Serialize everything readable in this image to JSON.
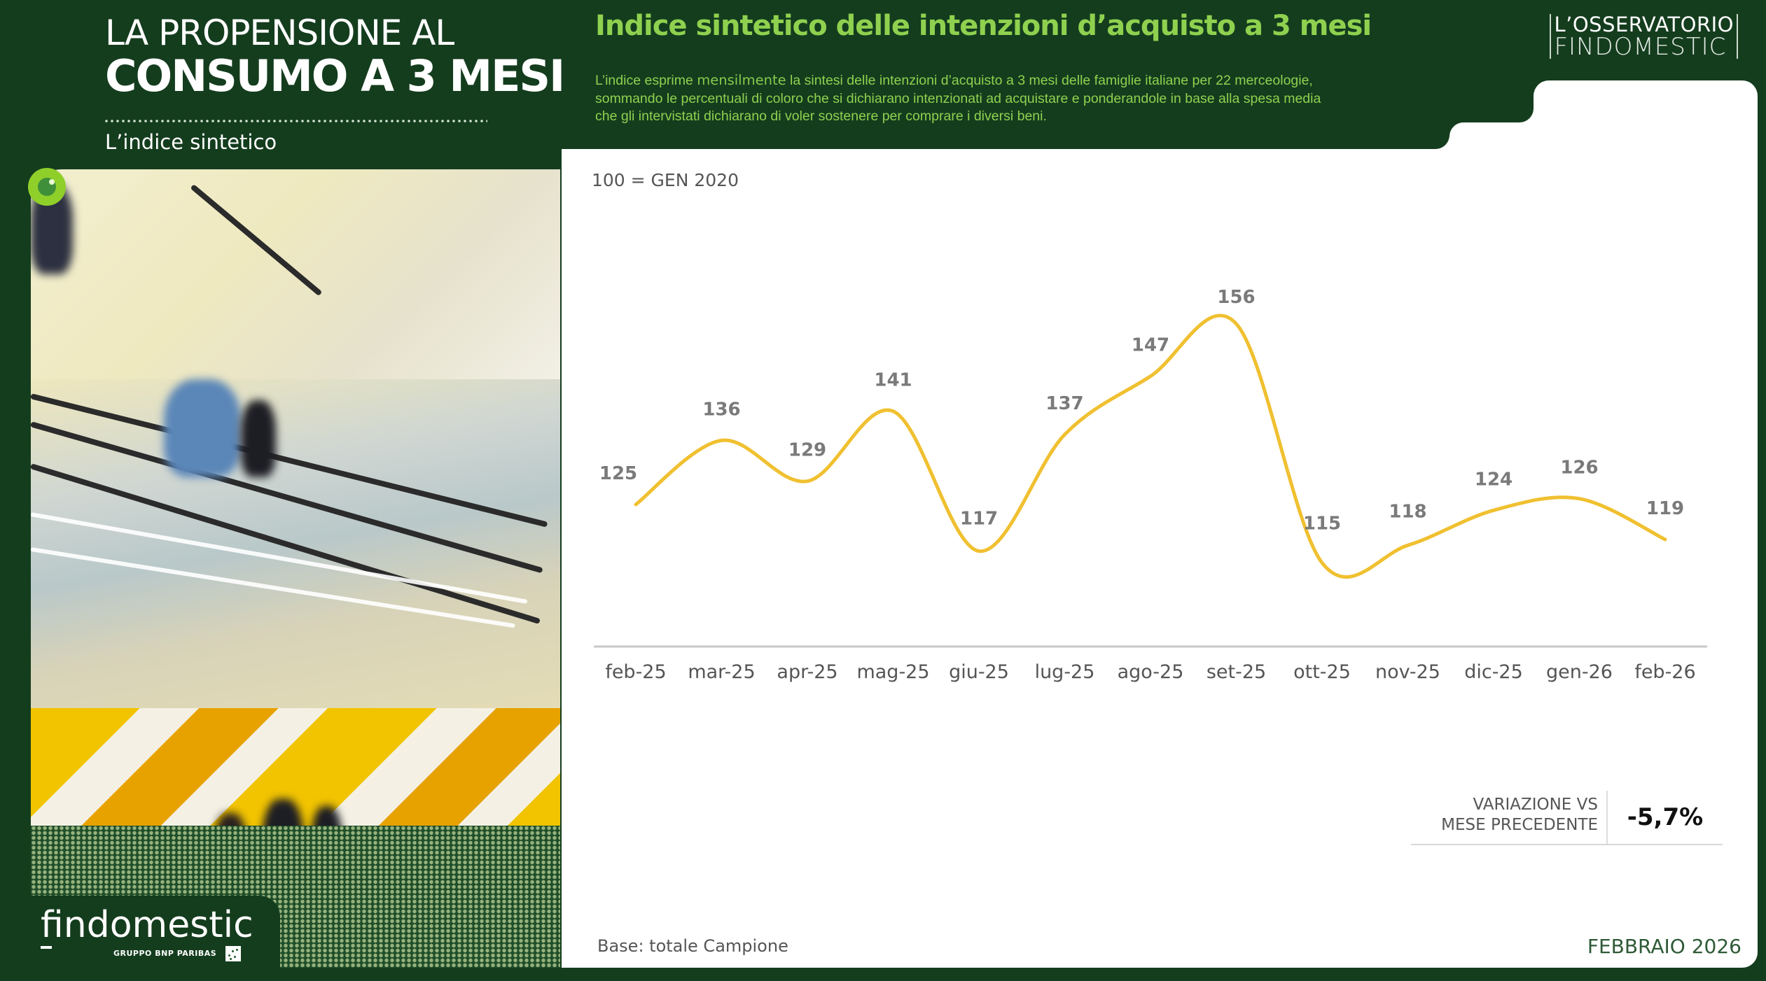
{
  "left": {
    "title_line1": "LA PROPENSIONE AL",
    "title_line2": "CONSUMO A 3 MESI",
    "subtitle": "L’indice sintetico",
    "brand": "findomestic",
    "brand_sub": "GRUPPO BNP PARIBAS"
  },
  "header": {
    "title": "Indice sintetico delle intenzioni d’acquisto a 3 mesi",
    "desc_line1_a": "L’indice esprime ",
    "desc_line1_hl": "mensilmente",
    "desc_line1_b": " la sintesi delle intenzioni d’acquisto a 3 mesi delle famiglie italiane per 22 merceologie,",
    "desc_line2": "sommando le percentuali di coloro che si dichiarano intenzionati ad acquistare e ponderandole in base alla spesa media",
    "desc_line3": "che gli intervistati dichiarano di voler sostenere per comprare i diversi beni.",
    "logo_line1": "L’OSSERVATORIO",
    "logo_line2": "FINDOMESTIC"
  },
  "panel": {
    "base_note": "100 = GEN 2020",
    "source": "Base: totale Campione",
    "period": "FEBBRAIO 2026",
    "variation_label_1": "VARIAZIONE VS",
    "variation_label_2": "MESE PRECEDENTE",
    "variation_value": "-5,7%"
  },
  "colors": {
    "background": "#143d1e",
    "accent_green": "#8fd14f",
    "line": "#f0c030",
    "label_gray": "#7a7a7a",
    "axis": "#c8c8c8"
  },
  "chart_data": {
    "type": "line",
    "title": "Indice sintetico delle intenzioni d’acquisto a 3 mesi",
    "subtitle": "100 = GEN 2020",
    "categories": [
      "feb-25",
      "mar-25",
      "apr-25",
      "mag-25",
      "giu-25",
      "lug-25",
      "ago-25",
      "set-25",
      "ott-25",
      "nov-25",
      "dic-25",
      "gen-26",
      "feb-26"
    ],
    "series": [
      {
        "name": "Indice sintetico",
        "values": [
          125,
          136,
          129,
          141,
          117,
          137,
          147,
          156,
          115,
          118,
          124,
          126,
          119
        ]
      }
    ],
    "xlabel": "",
    "ylabel": "",
    "grid": false,
    "legend": "none",
    "smooth": true,
    "data_labels": true
  }
}
